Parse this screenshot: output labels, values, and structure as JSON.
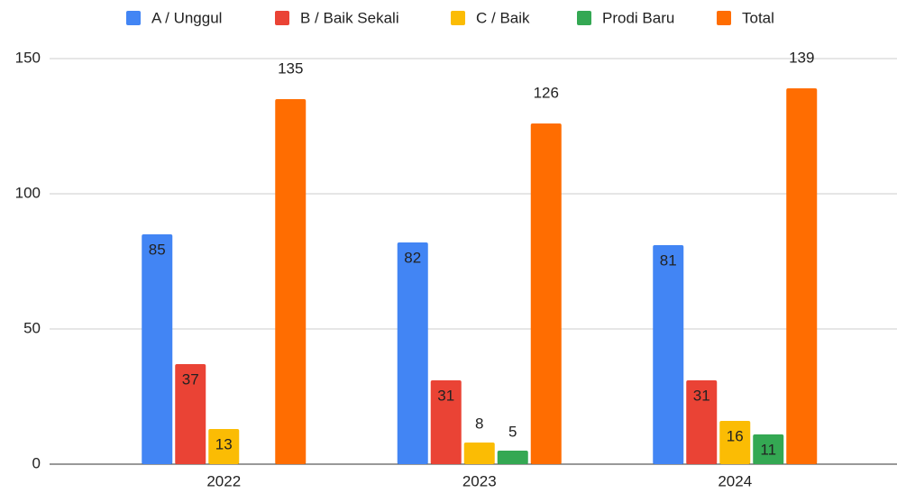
{
  "chart_data": {
    "type": "bar",
    "categories": [
      "2022",
      "2023",
      "2024"
    ],
    "series": [
      {
        "name": "A / Unggul",
        "color": "#4285f4",
        "values": [
          85,
          82,
          81
        ]
      },
      {
        "name": "B / Baik Sekali",
        "color": "#ea4335",
        "values": [
          37,
          31,
          31
        ]
      },
      {
        "name": "C / Baik",
        "color": "#fbbc04",
        "values": [
          13,
          8,
          16
        ]
      },
      {
        "name": "Prodi Baru",
        "color": "#34a853",
        "values": [
          null,
          5,
          11
        ]
      },
      {
        "name": "Total",
        "color": "#ff6d01",
        "values": [
          135,
          126,
          139
        ]
      }
    ],
    "ylim": [
      0,
      150
    ],
    "yticks": [
      0,
      50,
      100,
      150
    ],
    "grid": true,
    "legend": "top"
  }
}
